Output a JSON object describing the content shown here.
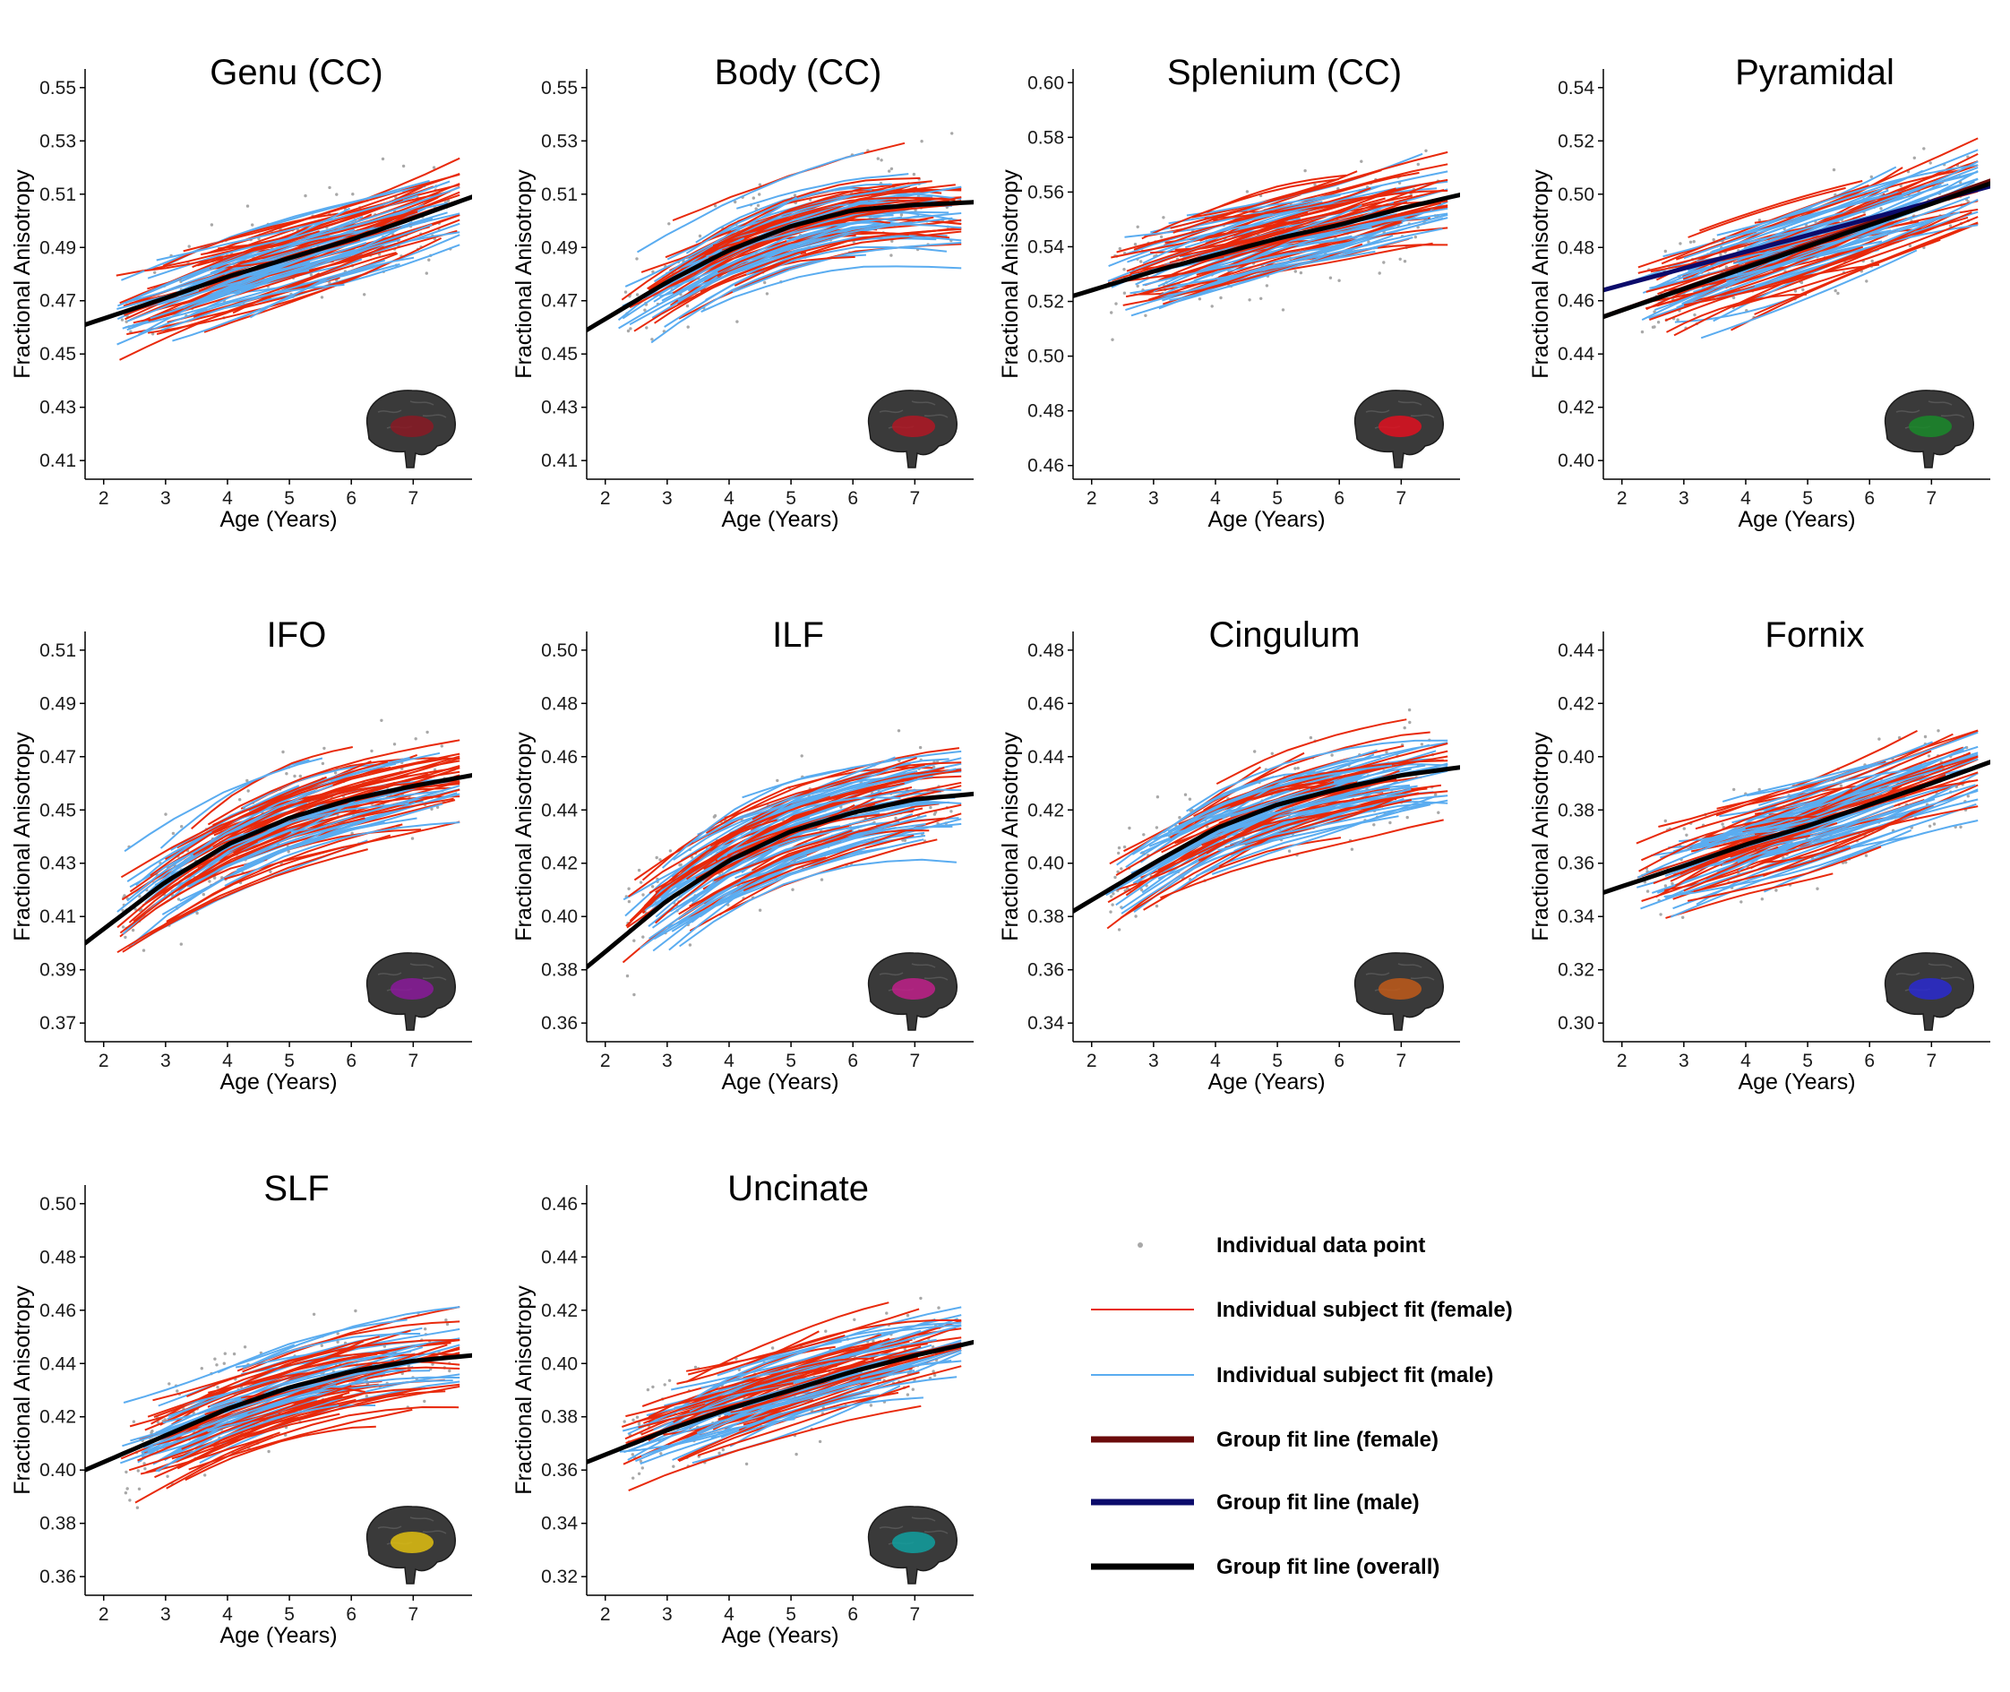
{
  "colors": {
    "female_individual": "#e8290b",
    "male_individual": "#5aacf0",
    "group_female": "#6b0b0b",
    "group_male": "#0b0b6b",
    "group_overall": "#000000",
    "data_point": "#a8a8a8",
    "brain": "#3a3a3a"
  },
  "common": {
    "xlabel": "Age (Years)",
    "ylabel": "Fractional Anisotropy",
    "xticks": [
      2,
      3,
      4,
      5,
      6,
      7
    ],
    "xlim": [
      1.7,
      7.95
    ]
  },
  "legend": {
    "items": [
      {
        "key": "point",
        "label": "Individual data point"
      },
      {
        "key": "female",
        "label": "Individual subject fit (female)"
      },
      {
        "key": "male",
        "label": "Individual subject fit (male)"
      },
      {
        "key": "group_female",
        "label": "Group fit line (female)"
      },
      {
        "key": "group_male",
        "label": "Group fit line (male)"
      },
      {
        "key": "group_overall",
        "label": "Group fit line (overall)"
      }
    ]
  },
  "chart_data": [
    {
      "type": "line",
      "title": "Genu (CC)",
      "xlabel": "Age (Years)",
      "ylabel": "Fractional Anisotropy",
      "ylim": [
        0.403,
        0.557
      ],
      "yticks": [
        "0.41",
        "0.43",
        "0.45",
        "0.47",
        "0.49",
        "0.51",
        "0.53",
        "0.55"
      ],
      "group_overall": {
        "x": [
          1.7,
          3,
          4,
          5,
          6,
          7,
          7.95
        ],
        "y": [
          0.461,
          0.471,
          0.479,
          0.486,
          0.493,
          0.501,
          0.509
        ]
      },
      "brain_tract_color": "#8a1a24"
    },
    {
      "type": "line",
      "title": "Body (CC)",
      "xlabel": "Age (Years)",
      "ylabel": "Fractional Anisotropy",
      "ylim": [
        0.403,
        0.557
      ],
      "yticks": [
        "0.41",
        "0.43",
        "0.45",
        "0.47",
        "0.49",
        "0.51",
        "0.53",
        "0.55"
      ],
      "group_overall": {
        "x": [
          1.7,
          3,
          4,
          5,
          6,
          7,
          7.95
        ],
        "y": [
          0.459,
          0.477,
          0.489,
          0.498,
          0.504,
          0.506,
          0.507
        ]
      },
      "brain_tract_color": "#b01824"
    },
    {
      "type": "line",
      "title": "Splenium (CC)",
      "xlabel": "Age (Years)",
      "ylabel": "Fractional Anisotropy",
      "ylim": [
        0.455,
        0.605
      ],
      "yticks": [
        "0.46",
        "0.48",
        "0.50",
        "0.52",
        "0.54",
        "0.56",
        "0.58",
        "0.60"
      ],
      "group_overall": {
        "x": [
          1.7,
          3,
          4,
          5,
          6,
          7,
          7.95
        ],
        "y": [
          0.522,
          0.531,
          0.537,
          0.543,
          0.548,
          0.554,
          0.559
        ]
      },
      "brain_tract_color": "#e01020"
    },
    {
      "type": "line",
      "title": "Pyramidal",
      "xlabel": "Age (Years)",
      "ylabel": "Fractional Anisotropy",
      "ylim": [
        0.393,
        0.547
      ],
      "yticks": [
        "0.40",
        "0.42",
        "0.44",
        "0.46",
        "0.48",
        "0.50",
        "0.52",
        "0.54"
      ],
      "group_overall": {
        "x": [
          1.7,
          7.95
        ],
        "y": [
          0.454,
          0.504
        ]
      },
      "group_female": {
        "x": [
          1.7,
          7.95
        ],
        "y": [
          0.454,
          0.505
        ]
      },
      "group_male": {
        "x": [
          1.7,
          7.95
        ],
        "y": [
          0.464,
          0.503
        ]
      },
      "brain_tract_color": "#1a8a2a"
    },
    {
      "type": "line",
      "title": "IFO",
      "xlabel": "Age (Years)",
      "ylabel": "Fractional Anisotropy",
      "ylim": [
        0.363,
        0.517
      ],
      "yticks": [
        "0.37",
        "0.39",
        "0.41",
        "0.43",
        "0.45",
        "0.47",
        "0.49",
        "0.51"
      ],
      "group_overall": {
        "x": [
          1.7,
          3,
          4,
          5,
          6,
          7,
          7.95
        ],
        "y": [
          0.4,
          0.423,
          0.437,
          0.447,
          0.454,
          0.459,
          0.463
        ]
      },
      "brain_tract_color": "#8a1a9a"
    },
    {
      "type": "line",
      "title": "ILF",
      "xlabel": "Age (Years)",
      "ylabel": "Fractional Anisotropy",
      "ylim": [
        0.353,
        0.507
      ],
      "yticks": [
        "0.36",
        "0.38",
        "0.40",
        "0.42",
        "0.44",
        "0.46",
        "0.48",
        "0.50"
      ],
      "group_overall": {
        "x": [
          1.7,
          3,
          4,
          5,
          6,
          7,
          7.95
        ],
        "y": [
          0.381,
          0.406,
          0.421,
          0.432,
          0.439,
          0.444,
          0.446
        ]
      },
      "brain_tract_color": "#c0208a"
    },
    {
      "type": "line",
      "title": "Cingulum",
      "xlabel": "Age (Years)",
      "ylabel": "Fractional Anisotropy",
      "ylim": [
        0.333,
        0.487
      ],
      "yticks": [
        "0.34",
        "0.36",
        "0.38",
        "0.40",
        "0.42",
        "0.44",
        "0.46",
        "0.48"
      ],
      "group_overall": {
        "x": [
          1.7,
          3,
          4,
          5,
          6,
          7,
          7.95
        ],
        "y": [
          0.382,
          0.4,
          0.413,
          0.422,
          0.428,
          0.433,
          0.436
        ]
      },
      "brain_tract_color": "#c05a1a"
    },
    {
      "type": "line",
      "title": "Fornix",
      "xlabel": "Age (Years)",
      "ylabel": "Fractional Anisotropy",
      "ylim": [
        0.293,
        0.447
      ],
      "yticks": [
        "0.30",
        "0.32",
        "0.34",
        "0.36",
        "0.38",
        "0.40",
        "0.42",
        "0.44"
      ],
      "group_overall": {
        "x": [
          1.7,
          3,
          4,
          5,
          6,
          7,
          7.95
        ],
        "y": [
          0.349,
          0.359,
          0.367,
          0.374,
          0.382,
          0.39,
          0.398
        ]
      },
      "brain_tract_color": "#2a2ad0"
    },
    {
      "type": "line",
      "title": "SLF",
      "xlabel": "Age (Years)",
      "ylabel": "Fractional Anisotropy",
      "ylim": [
        0.353,
        0.507
      ],
      "yticks": [
        "0.36",
        "0.38",
        "0.40",
        "0.42",
        "0.44",
        "0.46",
        "0.48",
        "0.50"
      ],
      "group_overall": {
        "x": [
          1.7,
          3,
          4,
          5,
          6,
          7,
          7.95
        ],
        "y": [
          0.4,
          0.413,
          0.423,
          0.431,
          0.437,
          0.441,
          0.443
        ]
      },
      "brain_tract_color": "#e0c010"
    },
    {
      "type": "line",
      "title": "Uncinate",
      "xlabel": "Age (Years)",
      "ylabel": "Fractional Anisotropy",
      "ylim": [
        0.313,
        0.467
      ],
      "yticks": [
        "0.32",
        "0.34",
        "0.36",
        "0.38",
        "0.40",
        "0.42",
        "0.44",
        "0.46"
      ],
      "group_overall": {
        "x": [
          1.7,
          3,
          4,
          5,
          6,
          7,
          7.95
        ],
        "y": [
          0.363,
          0.375,
          0.383,
          0.39,
          0.397,
          0.403,
          0.408
        ]
      },
      "brain_tract_color": "#10a0a0"
    }
  ]
}
